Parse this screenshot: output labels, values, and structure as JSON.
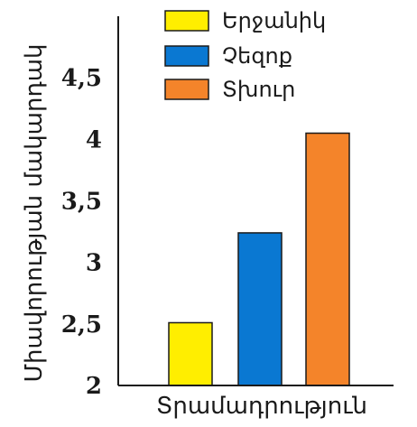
{
  "chart_data": {
    "type": "bar",
    "categories": [
      "Երջանիկ",
      "Չեզոք",
      "Տխուր"
    ],
    "values": [
      2.51,
      3.24,
      4.05
    ],
    "colors": [
      "#ffee00",
      "#0a78d2",
      "#f4842a"
    ],
    "xlabel": "Տրամադրություն",
    "ylabel": "Միավորության մակարդակ",
    "ylim": [
      2,
      5
    ],
    "yticks": [
      "2",
      "2,5",
      "3",
      "3,5",
      "4",
      "4,5"
    ],
    "ytick_values": [
      2,
      2.5,
      3,
      3.5,
      4,
      4.5
    ],
    "grid": false,
    "legend_position": "top",
    "legend": [
      {
        "label": "Երջանիկ",
        "color": "#ffee00"
      },
      {
        "label": "Չեզոք",
        "color": "#0a78d2"
      },
      {
        "label": "Տխուր",
        "color": "#f4842a"
      }
    ]
  }
}
